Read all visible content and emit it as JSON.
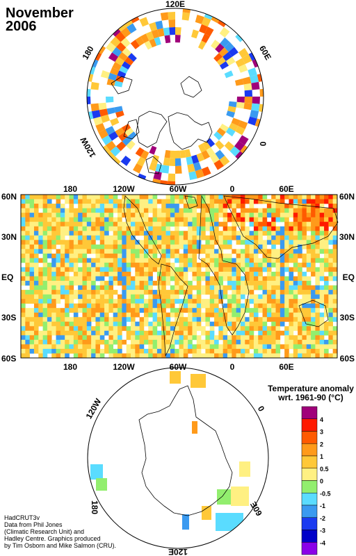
{
  "title": {
    "line1": "November",
    "line2": "2006"
  },
  "north_polar_labels": {
    "top": "120E",
    "right": "60E",
    "left": "180",
    "lower_left": "120W",
    "lower_right": "0"
  },
  "south_polar_labels": {
    "upper_left": "120W",
    "upper_right": "0",
    "left": "180",
    "lower_right": "60E",
    "bottom": "120E"
  },
  "world_map": {
    "lon_ticks_top": [
      "180",
      "120W",
      "60W",
      "0",
      "60E"
    ],
    "lon_ticks_bottom": [
      "180",
      "120W",
      "60W",
      "0",
      "60E"
    ],
    "lat_ticks_left": [
      "60N",
      "30N",
      "EQ",
      "30S",
      "60S"
    ],
    "lat_ticks_right": [
      "60N",
      "30N",
      "EQ",
      "30S",
      "60S"
    ]
  },
  "legend": {
    "title_line1": "Temperature anomaly",
    "title_line2": "wrt. 1961-90  (°C)",
    "labels": [
      "4",
      "3",
      "2",
      "1",
      "0.5",
      "0",
      "-0.5",
      "-1",
      "-2",
      "-3",
      "-4"
    ],
    "colors": [
      "#a0007a",
      "#ff1a00",
      "#ff5a00",
      "#ff9a1a",
      "#ffc838",
      "#fff082",
      "#92ee6e",
      "#5adcff",
      "#3a9af0",
      "#1a3af0",
      "#0000c8",
      "#8a00e8"
    ]
  },
  "credits": {
    "line1": "HadCRUT3v",
    "line2": "Data from Phil Jones",
    "line3": "(Climatic Research Unit) and",
    "line4": "Hadley Centre.  Graphics produced",
    "line5": "by Tim Osborn and Mike Salmon (CRU)."
  }
}
